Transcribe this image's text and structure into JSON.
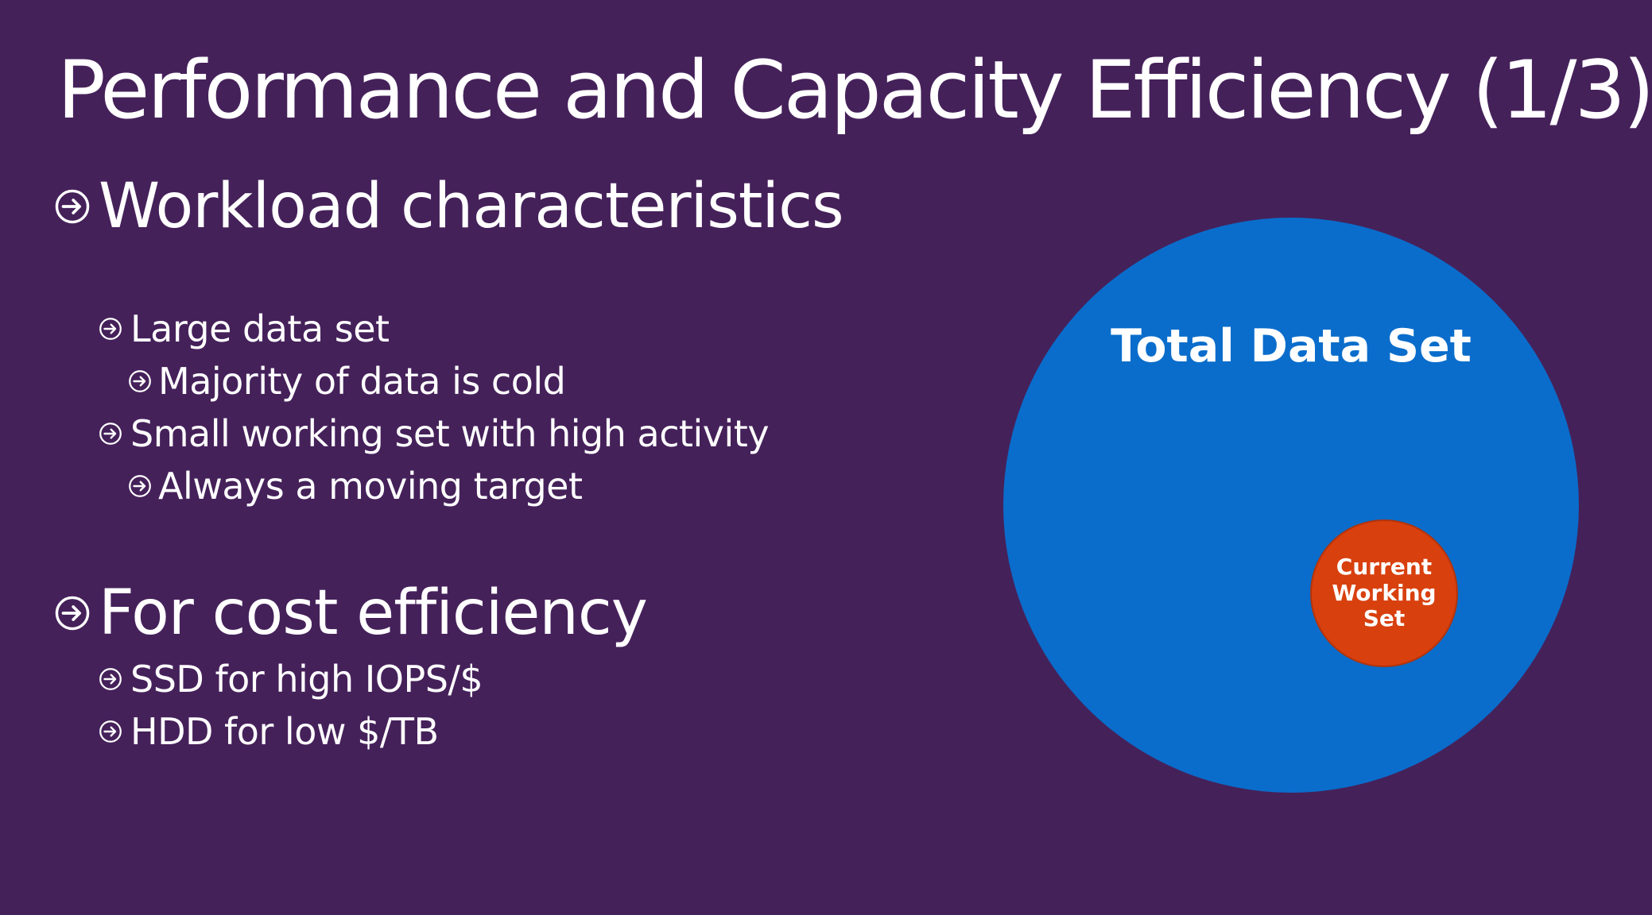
{
  "slide": {
    "title": "Performance and Capacity Efficiency (1/3)",
    "colors": {
      "background": "#45215a",
      "text": "#ffffff",
      "total_circle": "#0a6dcb",
      "working_set_circle": "#d8400e"
    },
    "sections": [
      {
        "heading": "Workload characteristics",
        "items": [
          {
            "text": "Large data set"
          },
          {
            "text": "Majority of data is cold"
          },
          {
            "text": "Small working set with high activity"
          },
          {
            "text": "Always a moving target"
          }
        ]
      },
      {
        "heading": "For cost efficiency",
        "items": [
          {
            "text": "SSD for high IOPS/$"
          },
          {
            "text": "HDD for low $/TB"
          }
        ]
      }
    ],
    "bullet_icon": "circled-arrow-icon"
  },
  "diagram": {
    "total": {
      "label": "Total Data Set"
    },
    "working_set": {
      "label_lines": [
        "Current",
        "Working",
        "Set"
      ]
    }
  }
}
